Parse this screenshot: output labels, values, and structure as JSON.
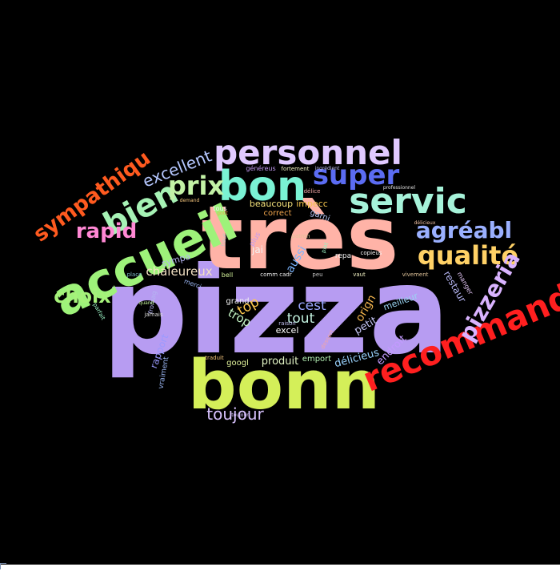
{
  "words": [
    {
      "text": "pizza",
      "color": "#b79cf2"
    },
    {
      "text": "très",
      "color": "#ffb3a7"
    },
    {
      "text": "bonn",
      "color": "#d4ef59"
    },
    {
      "text": "accueil",
      "color": "#9ef27a"
    },
    {
      "text": "bon",
      "color": "#7af2d4"
    },
    {
      "text": "personnel",
      "color": "#e0c9ff"
    },
    {
      "text": "servic",
      "color": "#a6f2d9"
    },
    {
      "text": "recommand",
      "color": "#ff1f1f"
    },
    {
      "text": "bien",
      "color": "#a6f2b5"
    },
    {
      "text": "super",
      "color": "#5b6cf2"
    },
    {
      "text": "qualité",
      "color": "#ffd166"
    },
    {
      "text": "sympathiqu",
      "color": "#ff5a1f"
    },
    {
      "text": "prix",
      "color": "#c3f2a6"
    },
    {
      "text": "pizzeria",
      "color": "#d9b3ff"
    },
    {
      "text": "agréabl",
      "color": "#9ab0ff"
    },
    {
      "text": "rapid",
      "color": "#ff88d4"
    },
    {
      "text": "excellent",
      "color": "#b5c7ff"
    },
    {
      "text": "choix",
      "color": "#a6f27a"
    },
    {
      "text": "toujour",
      "color": "#d9c3ff"
    },
    {
      "text": "cest",
      "color": "#9aa6ff"
    },
    {
      "text": "top",
      "color": "#ffc84d"
    },
    {
      "text": "tout",
      "color": "#c3f2e0"
    },
    {
      "text": "chaleureux",
      "color": "#f2e0c3"
    },
    {
      "text": "trop",
      "color": "#c3f2c3"
    },
    {
      "text": "produit",
      "color": "#e0f2c3"
    },
    {
      "text": "rapport",
      "color": "#9a9aff"
    },
    {
      "text": "orign",
      "color": "#f2b34d"
    },
    {
      "text": "aussi",
      "color": "#7ab5ff"
    },
    {
      "text": "endroit",
      "color": "#c39aff"
    },
    {
      "text": "délicieus",
      "color": "#9ad4ff"
    },
    {
      "text": "petit",
      "color": "#c3c3f2"
    },
    {
      "text": "meilleur",
      "color": "#9ad4f2"
    },
    {
      "text": "restaur",
      "color": "#b5b5f2"
    },
    {
      "text": "excel",
      "color": "#ffffff"
    },
    {
      "text": "jai",
      "color": "#f2f2f2"
    },
    {
      "text": "beaucoup",
      "color": "#f2e07a"
    },
    {
      "text": "googl",
      "color": "#e0f29a"
    },
    {
      "text": "emport",
      "color": "#b5f2b5"
    },
    {
      "text": "grand",
      "color": "#f2f2f2"
    },
    {
      "text": "sympa",
      "color": "#b5b5f2"
    },
    {
      "text": "correct",
      "color": "#f2a64d"
    },
    {
      "text": "impecc",
      "color": "#f2c34d"
    },
    {
      "text": "garni",
      "color": "#b5c3f2"
    },
    {
      "text": "vraiment",
      "color": "#9ab5f2"
    },
    {
      "text": "tous",
      "color": "#f2f2f2"
    },
    {
      "text": "repa",
      "color": "#f2f2f2"
    },
    {
      "text": "bell",
      "color": "#d4f29a"
    },
    {
      "text": "toujour",
      "color": "#d9c3ff"
    },
    {
      "text": "manger",
      "color": "#e0c3f2"
    },
    {
      "text": "plus",
      "color": "#c39af2"
    },
    {
      "text": "merci",
      "color": "#9ab5f2"
    },
    {
      "text": "fromag",
      "color": "#b5b5f2"
    },
    {
      "text": "place",
      "color": "#7ab5c3"
    },
    {
      "text": "vivement",
      "color": "#e0c39a"
    },
    {
      "text": "copieus",
      "color": "#f2f2f2"
    },
    {
      "text": "généreus",
      "color": "#c39af2"
    },
    {
      "text": "fortement",
      "color": "#f2f2c3"
    },
    {
      "text": "haut",
      "color": "#c3c3c3"
    },
    {
      "text": "patron",
      "color": "#e0c39a"
    },
    {
      "text": "plat",
      "color": "#9af2c3"
    },
    {
      "text": "vaut",
      "color": "#f2f2c3"
    },
    {
      "text": "dessert",
      "color": "#f2a6a6"
    },
    {
      "text": "traduit",
      "color": "#f2c37a"
    },
    {
      "text": "raison",
      "color": "#c3c3f2"
    },
    {
      "text": "comm cadr",
      "color": "#f2f2f2"
    },
    {
      "text": "peu",
      "color": "#c3c3c3"
    },
    {
      "text": "goût",
      "color": "#f2a64d"
    },
    {
      "text": "délice",
      "color": "#f2a6a6"
    },
    {
      "text": "ingrédient",
      "color": "#c3c3f2"
    },
    {
      "text": "professionnel",
      "color": "#e0e0e0"
    },
    {
      "text": "demand",
      "color": "#f2c37a"
    },
    {
      "text": "parfait",
      "color": "#9af2c3"
    },
    {
      "text": "quand",
      "color": "#c3f29a"
    },
    {
      "text": "jamais",
      "color": "#e0e0e0"
    },
    {
      "text": "délicieux",
      "color": "#f2c3a6"
    }
  ]
}
